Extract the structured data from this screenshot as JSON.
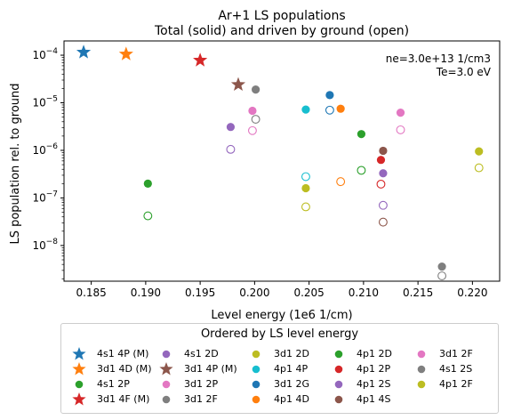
{
  "chart_data": {
    "type": "scatter",
    "title_line1": "Ar+1 LS populations",
    "title_line2": "Total (solid) and driven by ground (open)",
    "xlabel": "Level energy (1e6 1/cm)",
    "ylabel": "LS population rel. to ground",
    "xlim": [
      0.1825,
      0.2225
    ],
    "ylim_log10": [
      -8.75,
      -3.7
    ],
    "yscale": "log",
    "xticks": [
      {
        "v": 0.185,
        "label": "0.185"
      },
      {
        "v": 0.19,
        "label": "0.190"
      },
      {
        "v": 0.195,
        "label": "0.195"
      },
      {
        "v": 0.2,
        "label": "0.200"
      },
      {
        "v": 0.205,
        "label": "0.205"
      },
      {
        "v": 0.21,
        "label": "0.210"
      },
      {
        "v": 0.215,
        "label": "0.215"
      },
      {
        "v": 0.22,
        "label": "0.220"
      }
    ],
    "yticks": [
      {
        "exp": -8,
        "base": "10",
        "sup": "−8"
      },
      {
        "exp": -7,
        "base": "10",
        "sup": "−7"
      },
      {
        "exp": -6,
        "base": "10",
        "sup": "−6"
      },
      {
        "exp": -5,
        "base": "10",
        "sup": "−5"
      },
      {
        "exp": -4,
        "base": "10",
        "sup": "−4"
      }
    ],
    "annotation_line1": "ne=3.0e+13 1/cm3",
    "annotation_line2": "Te=3.0 eV",
    "legend_title": "Ordered by LS level energy",
    "legend_placement": "below",
    "series": [
      {
        "name": "4s1 4P (M)",
        "marker": "star",
        "color": "#1f77b4",
        "x": 0.1843,
        "total": 0.000115,
        "ground": null
      },
      {
        "name": "3d1 4D (M)",
        "marker": "star",
        "color": "#ff7f0e",
        "x": 0.1882,
        "total": 0.000105,
        "ground": null
      },
      {
        "name": "4s1 2P",
        "marker": "circle",
        "color": "#2ca02c",
        "x": 0.1902,
        "total": 2e-07,
        "ground": 4.2e-08
      },
      {
        "name": "3d1 4F (M)",
        "marker": "star",
        "color": "#d62728",
        "x": 0.195,
        "total": 7.8e-05,
        "ground": null
      },
      {
        "name": "4s1 2D",
        "marker": "circle",
        "color": "#9467bd",
        "x": 0.1978,
        "total": 3.1e-06,
        "ground": 1.05e-06
      },
      {
        "name": "3d1 4P (M)",
        "marker": "star",
        "color": "#8c564b",
        "x": 0.1985,
        "total": 2.4e-05,
        "ground": null
      },
      {
        "name": "3d1 2P",
        "marker": "circle",
        "color": "#e377c2",
        "x": 0.1998,
        "total": 6.8e-06,
        "ground": 2.6e-06
      },
      {
        "name": "3d1 2F",
        "marker": "circle",
        "color": "#7f7f7f",
        "x": 0.2001,
        "total": 1.9e-05,
        "ground": 4.5e-06
      },
      {
        "name": "3d1 2D",
        "marker": "circle",
        "color": "#bcbd22",
        "x": 0.2047,
        "total": 1.6e-07,
        "ground": 6.5e-08
      },
      {
        "name": "4p1 4P",
        "marker": "circle",
        "color": "#17becf",
        "x": 0.2047,
        "total": 7.2e-06,
        "ground": 2.8e-07
      },
      {
        "name": "3d1 2G",
        "marker": "circle",
        "color": "#1f77b4",
        "x": 0.2069,
        "total": 1.45e-05,
        "ground": 7e-06
      },
      {
        "name": "4p1 4D",
        "marker": "circle",
        "color": "#ff7f0e",
        "x": 0.2079,
        "total": 7.5e-06,
        "ground": 2.2e-07
      },
      {
        "name": "4p1 2D",
        "marker": "circle",
        "color": "#2ca02c",
        "x": 0.2098,
        "total": 2.2e-06,
        "ground": 3.8e-07
      },
      {
        "name": "4p1 2P",
        "marker": "circle",
        "color": "#d62728",
        "x": 0.2116,
        "total": 6.3e-07,
        "ground": 1.95e-07
      },
      {
        "name": "4p1 2S",
        "marker": "circle",
        "color": "#9467bd",
        "x": 0.2118,
        "total": 3.3e-07,
        "ground": 7e-08
      },
      {
        "name": "4p1 4S",
        "marker": "circle",
        "color": "#8c564b",
        "x": 0.2118,
        "total": 9.8e-07,
        "ground": 3.1e-08
      },
      {
        "name": "3d1 2F",
        "marker": "circle",
        "color": "#e377c2",
        "x": 0.2134,
        "total": 6.2e-06,
        "ground": 2.7e-06
      },
      {
        "name": "4s1 2S",
        "marker": "circle",
        "color": "#7f7f7f",
        "x": 0.2172,
        "total": 3.6e-09,
        "ground": 2.3e-09
      },
      {
        "name": "4p1 2F",
        "marker": "circle",
        "color": "#bcbd22",
        "x": 0.2206,
        "total": 9.5e-07,
        "ground": 4.3e-07
      }
    ]
  }
}
